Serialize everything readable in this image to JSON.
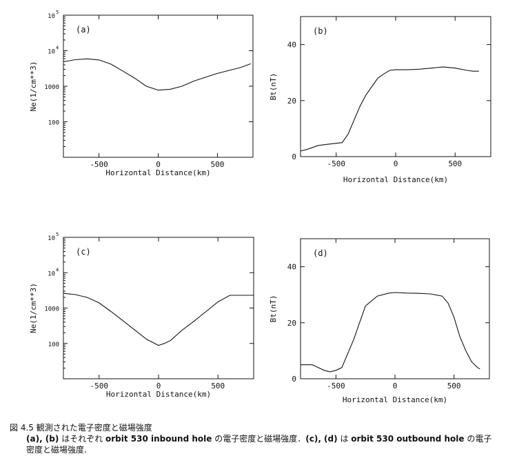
{
  "chart_data": [
    {
      "type": "line",
      "panel_label": "(a)",
      "xlabel": "Horizontal Distance(km)",
      "ylabel": "Ne(1/cm**3)",
      "xlim": [
        -800,
        800
      ],
      "xticks": [
        -500,
        0,
        500
      ],
      "ylim": [
        10,
        100000
      ],
      "yscale": "log",
      "yticks": [
        {
          "value": 100,
          "label": "100"
        },
        {
          "value": 1000,
          "label": "1000"
        },
        {
          "value": 10000,
          "label": "10",
          "exp": "4"
        },
        {
          "value": 100000,
          "label": "10",
          "exp": "5"
        }
      ],
      "x": [
        -800,
        -700,
        -600,
        -500,
        -400,
        -300,
        -200,
        -100,
        0,
        100,
        200,
        300,
        400,
        500,
        600,
        700,
        780
      ],
      "y": [
        4900,
        5600,
        5900,
        5500,
        4200,
        2700,
        1700,
        1000,
        780,
        820,
        1000,
        1400,
        1800,
        2300,
        2800,
        3400,
        4300
      ]
    },
    {
      "type": "line",
      "panel_label": "(b)",
      "xlabel": "Horizontal Distance(km)",
      "ylabel": "Bt(nT)",
      "xlim": [
        -800,
        800
      ],
      "xticks": [
        -500,
        0,
        500
      ],
      "ylim": [
        0,
        50
      ],
      "yticks": [
        {
          "value": 0,
          "label": "0"
        },
        {
          "value": 20,
          "label": "20"
        },
        {
          "value": 40,
          "label": "40"
        }
      ],
      "x": [
        -800,
        -750,
        -650,
        -550,
        -450,
        -400,
        -350,
        -300,
        -250,
        -200,
        -150,
        -100,
        -50,
        0,
        100,
        200,
        300,
        400,
        500,
        600,
        650,
        700
      ],
      "y": [
        2,
        2.5,
        4,
        4.5,
        5,
        8,
        13,
        18,
        22,
        25,
        28,
        29.5,
        30.8,
        31,
        31,
        31.2,
        31.6,
        32,
        31.6,
        30.8,
        30.5,
        30.5
      ]
    },
    {
      "type": "line",
      "panel_label": "(c)",
      "xlabel": "Horizontal Distance(km)",
      "ylabel": "Ne(1/cm**3)",
      "xlim": [
        -800,
        800
      ],
      "xticks": [
        -500,
        0,
        500
      ],
      "ylim": [
        10,
        100000
      ],
      "yscale": "log",
      "yticks": [
        {
          "value": 100,
          "label": "100"
        },
        {
          "value": 1000,
          "label": "1000"
        },
        {
          "value": 10000,
          "label": "10",
          "exp": "4"
        },
        {
          "value": 100000,
          "label": "10",
          "exp": "5"
        }
      ],
      "x": [
        -800,
        -700,
        -600,
        -500,
        -400,
        -300,
        -200,
        -100,
        0,
        50,
        100,
        150,
        200,
        300,
        400,
        500,
        600,
        700,
        800
      ],
      "y": [
        2600,
        2400,
        2000,
        1400,
        800,
        440,
        240,
        130,
        88,
        100,
        120,
        170,
        240,
        430,
        800,
        1500,
        2300,
        2300,
        2300
      ]
    },
    {
      "type": "line",
      "panel_label": "(d)",
      "xlabel": "Horizontal Distance(km)",
      "ylabel": "Bt(nT)",
      "xlim": [
        -800,
        800
      ],
      "xticks": [
        -500,
        0,
        500
      ],
      "ylim": [
        0,
        50
      ],
      "yticks": [
        {
          "value": 0,
          "label": "0"
        },
        {
          "value": 20,
          "label": "20"
        },
        {
          "value": 40,
          "label": "40"
        }
      ],
      "x": [
        -800,
        -700,
        -650,
        -600,
        -550,
        -500,
        -450,
        -350,
        -250,
        -150,
        -50,
        0,
        100,
        200,
        300,
        400,
        450,
        500,
        550,
        600,
        650,
        700,
        720
      ],
      "y": [
        5,
        5,
        4,
        3,
        2.5,
        3,
        4,
        14,
        26,
        29.5,
        30.6,
        30.8,
        30.6,
        30.5,
        30.3,
        29.5,
        27,
        22,
        15,
        10,
        6,
        4,
        3.5
      ]
    }
  ],
  "caption": {
    "figure_number": "図 4.5",
    "title": "観測された電子密度と磁場強度",
    "line2_prefix": "(a), (b)",
    "line2_text1": " はそれぞれ ",
    "line2_bold1": "orbit 530 inbound hole",
    "line2_text2": " の電子密度と磁場強度．",
    "line2_bold2": "(c), (d)",
    "line2_text3": " は ",
    "line2_bold3": "orbit 530 outbound hole",
    "line2_text4": " の電子",
    "line3": "密度と磁場強度."
  }
}
